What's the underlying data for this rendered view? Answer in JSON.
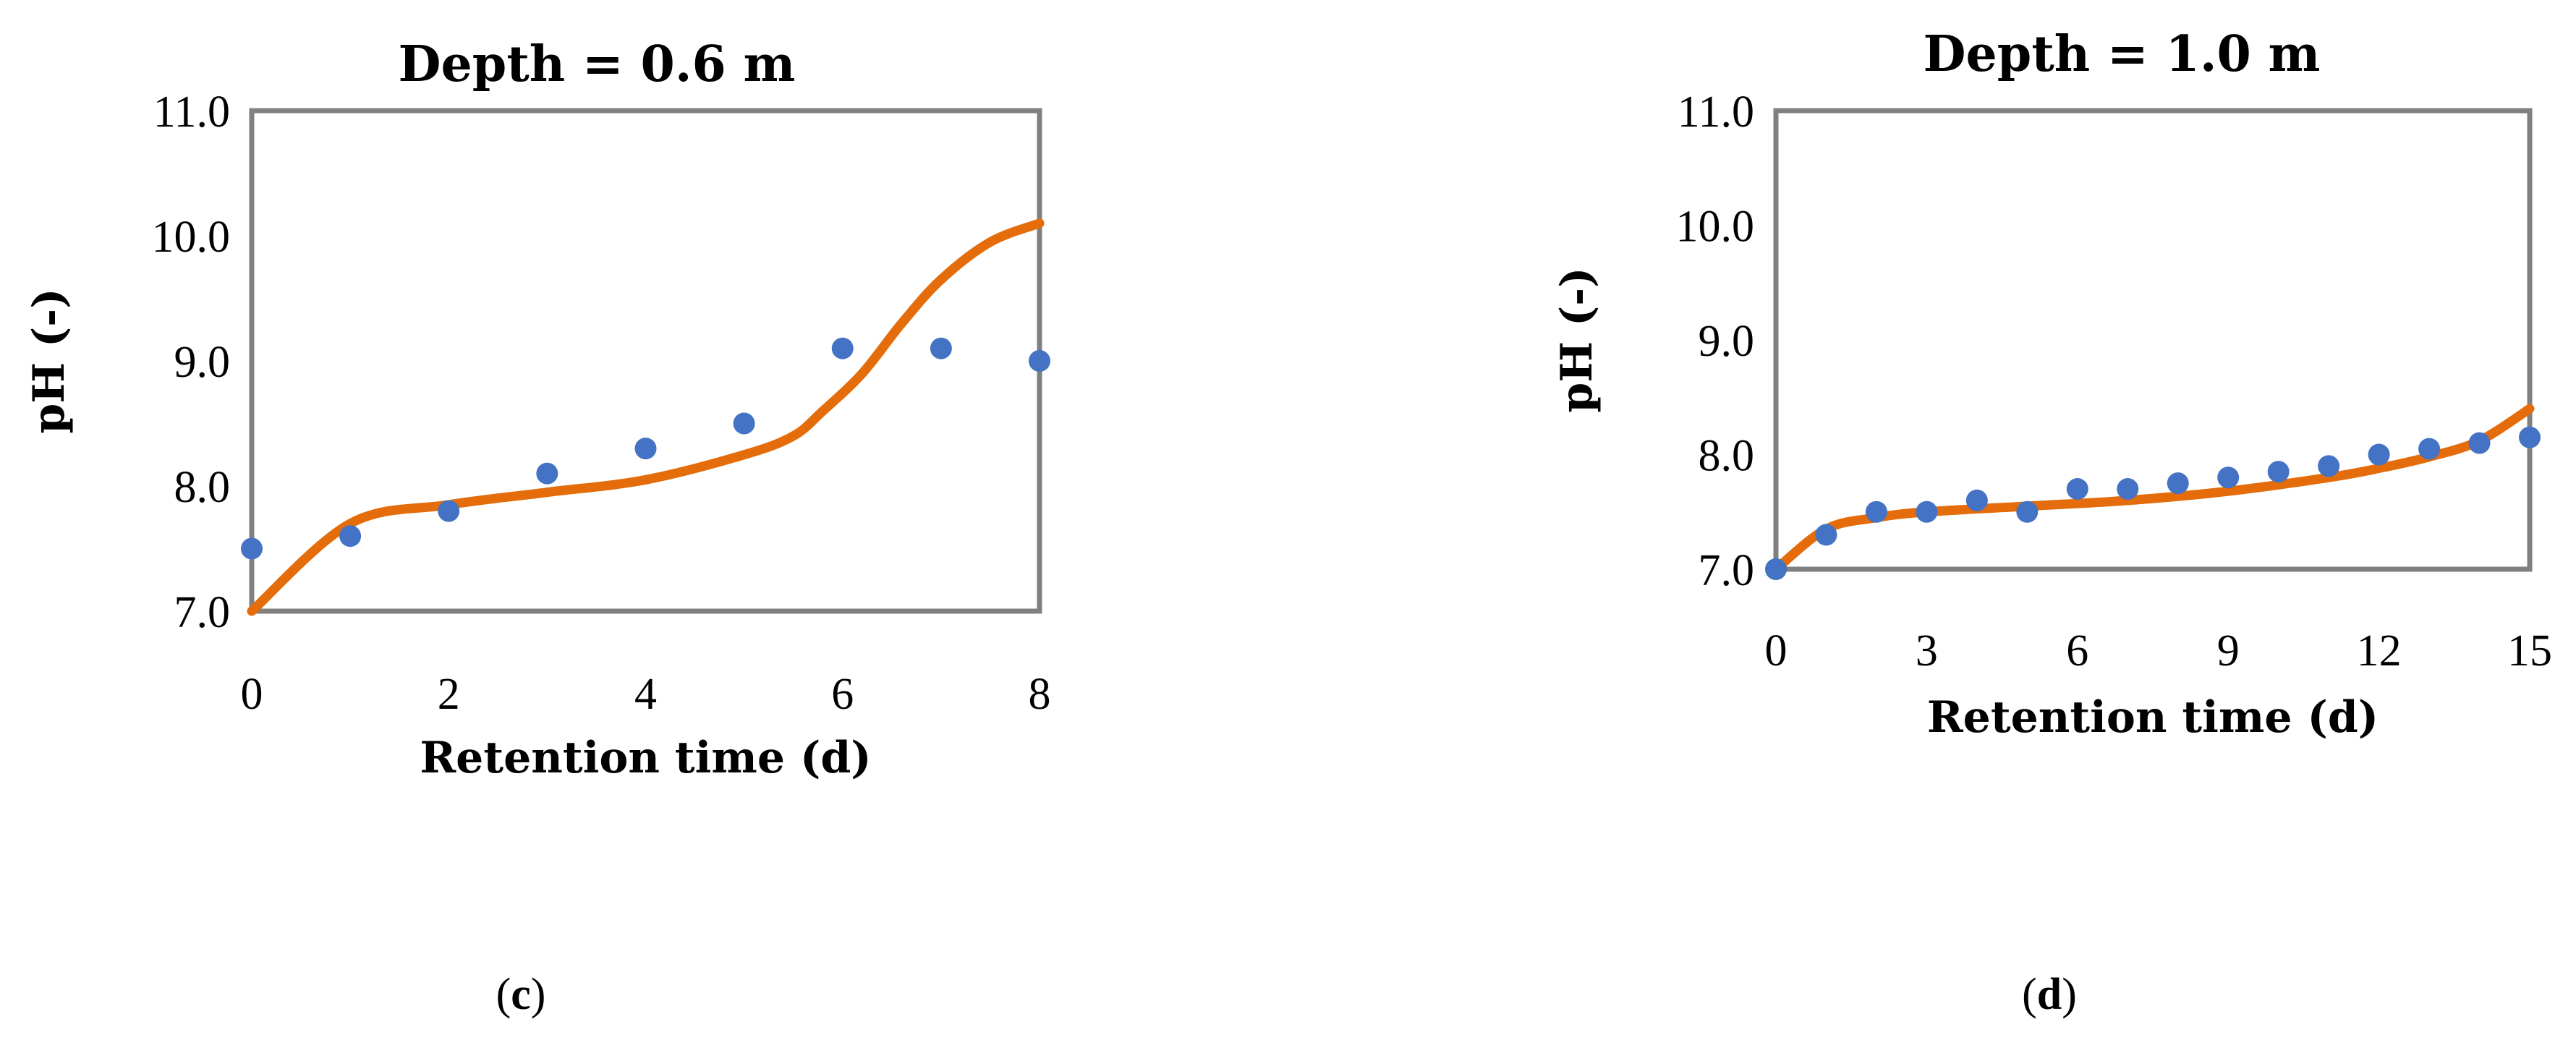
{
  "chart_data": [
    {
      "type": "scatter",
      "panel": "c",
      "title": "Depth = 0.6 m",
      "xlabel": "Retention time (d)",
      "ylabel": "pH (-)",
      "xlim": [
        0,
        8
      ],
      "ylim": [
        7.0,
        11.0
      ],
      "xticks": [
        "0",
        "2",
        "4",
        "6",
        "8"
      ],
      "yticks": [
        "7.0",
        "8.0",
        "9.0",
        "10.0",
        "11.0"
      ],
      "grid": false,
      "legend": "none",
      "colors": {
        "points": "#4472C4",
        "line": "#E46C0A",
        "frame": "#808080"
      },
      "series": [
        {
          "kind": "points",
          "x": [
            0,
            1,
            2,
            3,
            4,
            5,
            6,
            7,
            8
          ],
          "y": [
            7.5,
            7.6,
            7.8,
            8.1,
            8.3,
            8.5,
            9.1,
            9.1,
            9.0
          ]
        },
        {
          "kind": "line",
          "x": [
            0,
            1,
            2,
            3,
            4,
            5,
            5.5,
            5.8,
            6.2,
            6.6,
            7,
            7.5,
            8
          ],
          "y": [
            7.0,
            7.7,
            7.85,
            7.95,
            8.05,
            8.25,
            8.4,
            8.6,
            8.9,
            9.3,
            9.65,
            9.95,
            10.1
          ]
        }
      ]
    },
    {
      "type": "scatter",
      "panel": "d",
      "title": "Depth = 1.0 m",
      "xlabel": "Retention time (d)",
      "ylabel": "pH (-)",
      "xlim": [
        0,
        15
      ],
      "ylim": [
        7.0,
        11.0
      ],
      "xticks": [
        "0",
        "3",
        "6",
        "9",
        "12",
        "15"
      ],
      "yticks": [
        "7.0",
        "8.0",
        "9.0",
        "10.0",
        "11.0"
      ],
      "grid": false,
      "legend": "none",
      "colors": {
        "points": "#4472C4",
        "line": "#E46C0A",
        "frame": "#808080"
      },
      "series": [
        {
          "kind": "points",
          "x": [
            0,
            1,
            2,
            3,
            4,
            5,
            6,
            7,
            8,
            9,
            10,
            11,
            12,
            13,
            14,
            15
          ],
          "y": [
            7.0,
            7.3,
            7.5,
            7.5,
            7.6,
            7.5,
            7.7,
            7.7,
            7.75,
            7.8,
            7.85,
            7.9,
            8.0,
            8.05,
            8.1,
            8.15
          ]
        },
        {
          "kind": "line",
          "x": [
            0,
            1,
            2,
            3,
            5,
            7,
            9,
            11,
            12,
            13,
            14,
            15
          ],
          "y": [
            7.0,
            7.35,
            7.45,
            7.5,
            7.55,
            7.6,
            7.68,
            7.8,
            7.88,
            7.98,
            8.12,
            8.4
          ]
        }
      ]
    }
  ]
}
